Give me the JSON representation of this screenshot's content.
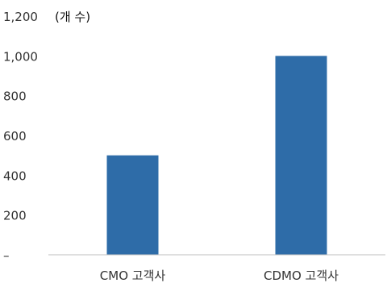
{
  "chart_data": {
    "type": "bar",
    "unit_label": "(개 수)",
    "categories": [
      "CMO 고객사",
      "CDMO 고객사"
    ],
    "values": [
      500,
      1000
    ],
    "ylim": [
      0,
      1200
    ],
    "yticks": [
      0,
      200,
      400,
      600,
      800,
      1000,
      1200
    ],
    "ytick_labels": [
      "–",
      "200",
      "400",
      "600",
      "800",
      "1,000",
      "1,200"
    ],
    "grid": false,
    "bar_color": "#2E6CA8",
    "axis_color": "#BFBFBF"
  }
}
